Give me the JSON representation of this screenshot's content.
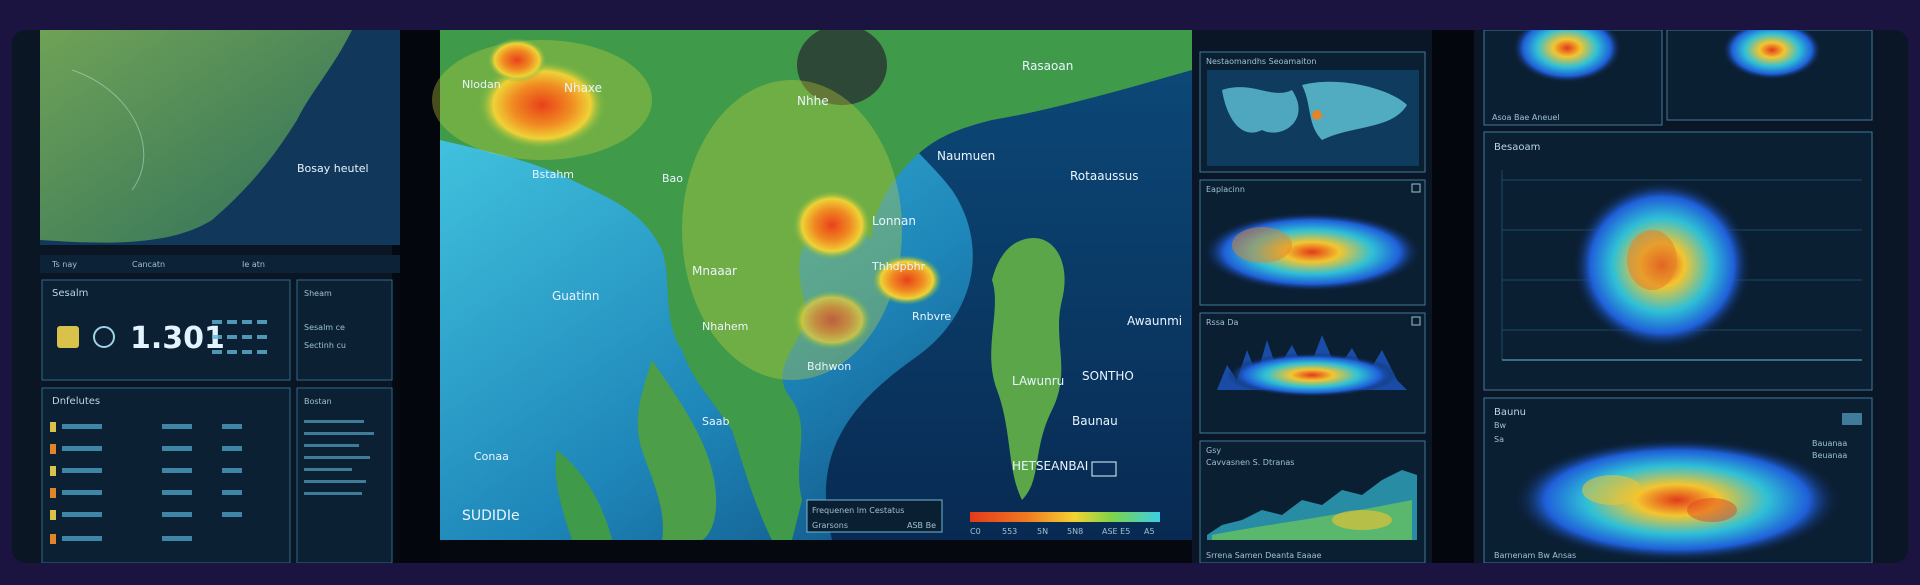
{
  "colors": {
    "page_bg": "#1c1440",
    "ocean_light": "#2fb8d6",
    "ocean_deep": "#0b3a6a",
    "land": "#3f9a4a",
    "heat_hot": "#e8461c",
    "heat_warm": "#f2c22e",
    "panel_bg": "#0a1a2c",
    "panel_border": "#3d7a99"
  },
  "left_screen": {
    "map_label": "Bosay heutel",
    "header_tabs": [
      "Ts  nay",
      "Cancatn",
      "Ie  atn"
    ],
    "status_title": "Sesalm",
    "big_value": "1.301",
    "side_title": "Bostan",
    "list_title": "Dnfelutes",
    "card_lines": [
      "Sheam",
      "Sesalm  ce",
      "Sectinh  cu"
    ]
  },
  "main_map": {
    "labels": {
      "top_hot": "Nhaxe",
      "top_left": "Nlodan",
      "north": "Nhhe",
      "west": "Rasaoan",
      "coast_left": "Bao",
      "gulf": "Bstahm",
      "open_sea": "Guatinn",
      "sea_label": "Mnaaar",
      "inland": "Nhahem",
      "center_hot": "Lonnan",
      "center": "Thhdpbhr",
      "east_river": "Rnbvre",
      "city": "Naumuen",
      "east_coast": "Rotaaussus",
      "south_center": "Bdhwon",
      "far_east": "Awaunmi",
      "south_east": "LAwunru",
      "south_east_2": "SONTHO",
      "bay": "Baunau",
      "south": "HETSEANBAI",
      "peninsula": "Saab",
      "bottom_left": "Conaa",
      "corner": "SUDIDIe"
    },
    "legend_box": {
      "title": "Frequenen lm Cestatus",
      "left": "Grarsons",
      "right": "ASB Be"
    },
    "colorbar_ticks": [
      "C0",
      "553",
      "5N",
      "5N8",
      "ASE  E5",
      "A5"
    ]
  },
  "right_panels": {
    "panel1_title": "Nestaomandhs Seoamaiton",
    "panel2_title": "Eaplacinn",
    "panel3_title": "Rssa  Da",
    "panel4_title": "Gsy",
    "panel4_sub": "Cavvasnen  S.  Dtranas",
    "bottom_axis": "Srrena  Samen  Deanta  Eaaae"
  },
  "far_right": {
    "top_axis": "Asoa  Bae  Aneuel",
    "chart_title": "Besaoam",
    "chart2_title": "Baunu",
    "chart2_sub": "Bw",
    "chart2_label": "Sa",
    "legend_items": [
      "Bauanaa",
      "Beuanaa"
    ],
    "bottom_axis": "Barnenam  Bw  Ansas"
  }
}
